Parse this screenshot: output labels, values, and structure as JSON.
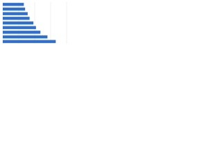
{
  "chart_data": {
    "type": "bar",
    "orientation": "horizontal",
    "categories": [
      null,
      null,
      null,
      null,
      null,
      null,
      null,
      null,
      null
    ],
    "values": [
      33,
      35,
      39,
      42,
      48,
      52,
      59,
      70,
      83
    ],
    "color": "#2f6fd0",
    "xlim": [
      0,
      100
    ],
    "xticks": [
      0,
      25,
      50,
      75,
      100
    ],
    "grid": true
  }
}
